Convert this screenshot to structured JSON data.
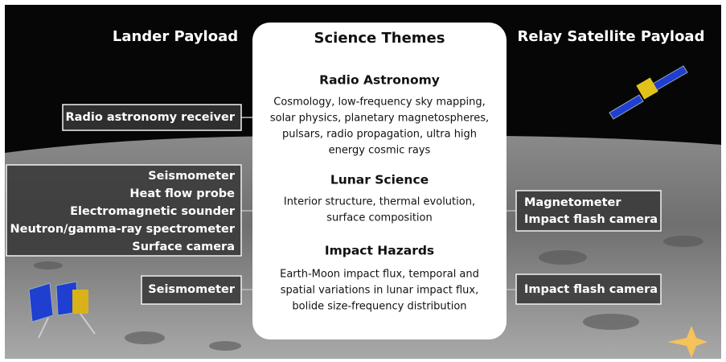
{
  "header": {
    "left_title": "Lander Payload",
    "center_title": "Science Themes",
    "right_title": "Relay Satellite Payload"
  },
  "themes": [
    {
      "title": "Radio Astronomy",
      "lines": [
        "Cosmology, low-frequency sky mapping,",
        "solar physics, planetary magnetospheres,",
        "pulsars, radio propagation, ultra high",
        "energy cosmic rays"
      ]
    },
    {
      "title": "Lunar Science",
      "lines": [
        "Interior structure, thermal evolution,",
        "surface composition"
      ]
    },
    {
      "title": "Impact Hazards",
      "lines": [
        "Earth-Moon impact flux, temporal and",
        "spatial variations in lunar impact flux,",
        "bolide size-frequency distribution"
      ]
    }
  ],
  "lander_payload": [
    {
      "items": [
        "Radio astronomy receiver"
      ]
    },
    {
      "items": [
        "Seismometer",
        "Heat flow probe",
        "Electromagnetic sounder",
        "Neutron/gamma-ray spectrometer",
        "Surface camera"
      ]
    },
    {
      "items": [
        "Seismometer"
      ]
    }
  ],
  "relay_payload": [
    {
      "items": [
        "Magnetometer",
        "Impact flash camera"
      ]
    },
    {
      "items": [
        "Impact flash camera"
      ]
    }
  ]
}
